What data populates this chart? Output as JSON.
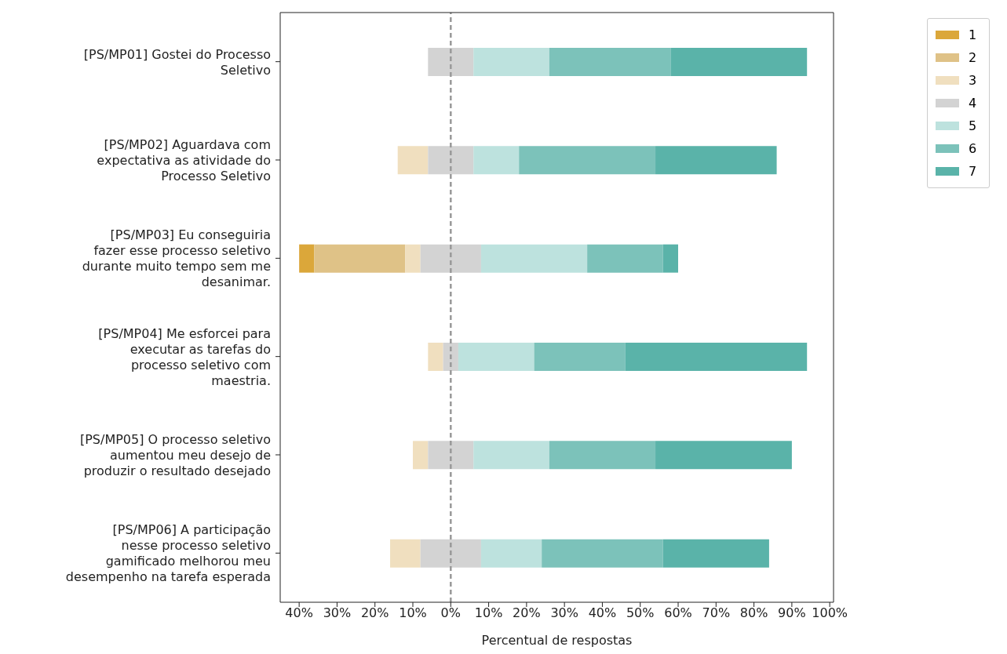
{
  "chart_data": {
    "type": "bar",
    "orientation": "horizontal",
    "xlabel": "Percentual de respostas",
    "categories": [
      "[PS/MP01] Gostei do Processo Seletivo",
      "[PS/MP02] Aguardava com expectativa as atividade do Processo Seletivo",
      "[PS/MP03] Eu conseguiria fazer esse processo seletivo durante muito tempo sem me desanimar.",
      "[PS/MP04] Me esforcei para executar as tarefas do processo seletivo com maestria.",
      "[PS/MP05] O processo seletivo aumentou meu desejo de produzir o resultado desejado",
      "[PS/MP06] A participação nesse processo seletivo gamificado melhorou meu desempenho na tarefa esperada"
    ],
    "series": [
      {
        "name": "1",
        "color": "#dba73a",
        "base": [
          null,
          null,
          -40,
          null,
          null,
          null
        ],
        "values": [
          null,
          null,
          4,
          null,
          null,
          null
        ]
      },
      {
        "name": "2",
        "color": "#dfc287",
        "base": [
          null,
          null,
          -36,
          null,
          null,
          null
        ],
        "values": [
          null,
          null,
          24,
          null,
          null,
          null
        ]
      },
      {
        "name": "3",
        "color": "#f0dfbf",
        "base": [
          null,
          -14,
          -12,
          -6,
          -10,
          -16
        ],
        "values": [
          null,
          8,
          4,
          4,
          4,
          8
        ]
      },
      {
        "name": "4",
        "color": "#d3d3d3",
        "base": [
          -6,
          -6,
          -8,
          -2,
          -6,
          -8
        ],
        "values": [
          12,
          12,
          16,
          4,
          12,
          16
        ]
      },
      {
        "name": "5",
        "color": "#bde2de",
        "base": [
          6,
          6,
          8,
          2,
          6,
          8
        ],
        "values": [
          20,
          12,
          28,
          20,
          20,
          16
        ]
      },
      {
        "name": "6",
        "color": "#7cc2ba",
        "base": [
          26,
          18,
          36,
          22,
          26,
          24
        ],
        "values": [
          32,
          36,
          20,
          24,
          28,
          32
        ]
      },
      {
        "name": "7",
        "color": "#5ab3a9",
        "base": [
          58,
          54,
          56,
          46,
          54,
          56
        ],
        "values": [
          36,
          32,
          4,
          48,
          36,
          28
        ]
      }
    ],
    "xlim": [
      -45,
      101
    ],
    "xticks": [
      {
        "value": -40,
        "label": "40%"
      },
      {
        "value": -30,
        "label": "30%"
      },
      {
        "value": -20,
        "label": "20%"
      },
      {
        "value": -10,
        "label": "10%"
      },
      {
        "value": 0,
        "label": "0%"
      },
      {
        "value": 10,
        "label": "10%"
      },
      {
        "value": 20,
        "label": "20%"
      },
      {
        "value": 30,
        "label": "30%"
      },
      {
        "value": 40,
        "label": "40%"
      },
      {
        "value": 50,
        "label": "50%"
      },
      {
        "value": 60,
        "label": "60%"
      },
      {
        "value": 70,
        "label": "70%"
      },
      {
        "value": 80,
        "label": "80%"
      },
      {
        "value": 90,
        "label": "90%"
      },
      {
        "value": 100,
        "label": "100%"
      }
    ],
    "ref_lines": [
      {
        "axis": "x",
        "value": 0,
        "label": null,
        "color": "#999999",
        "line_style": "dashed"
      }
    ],
    "grid": false,
    "legend": "top right"
  }
}
